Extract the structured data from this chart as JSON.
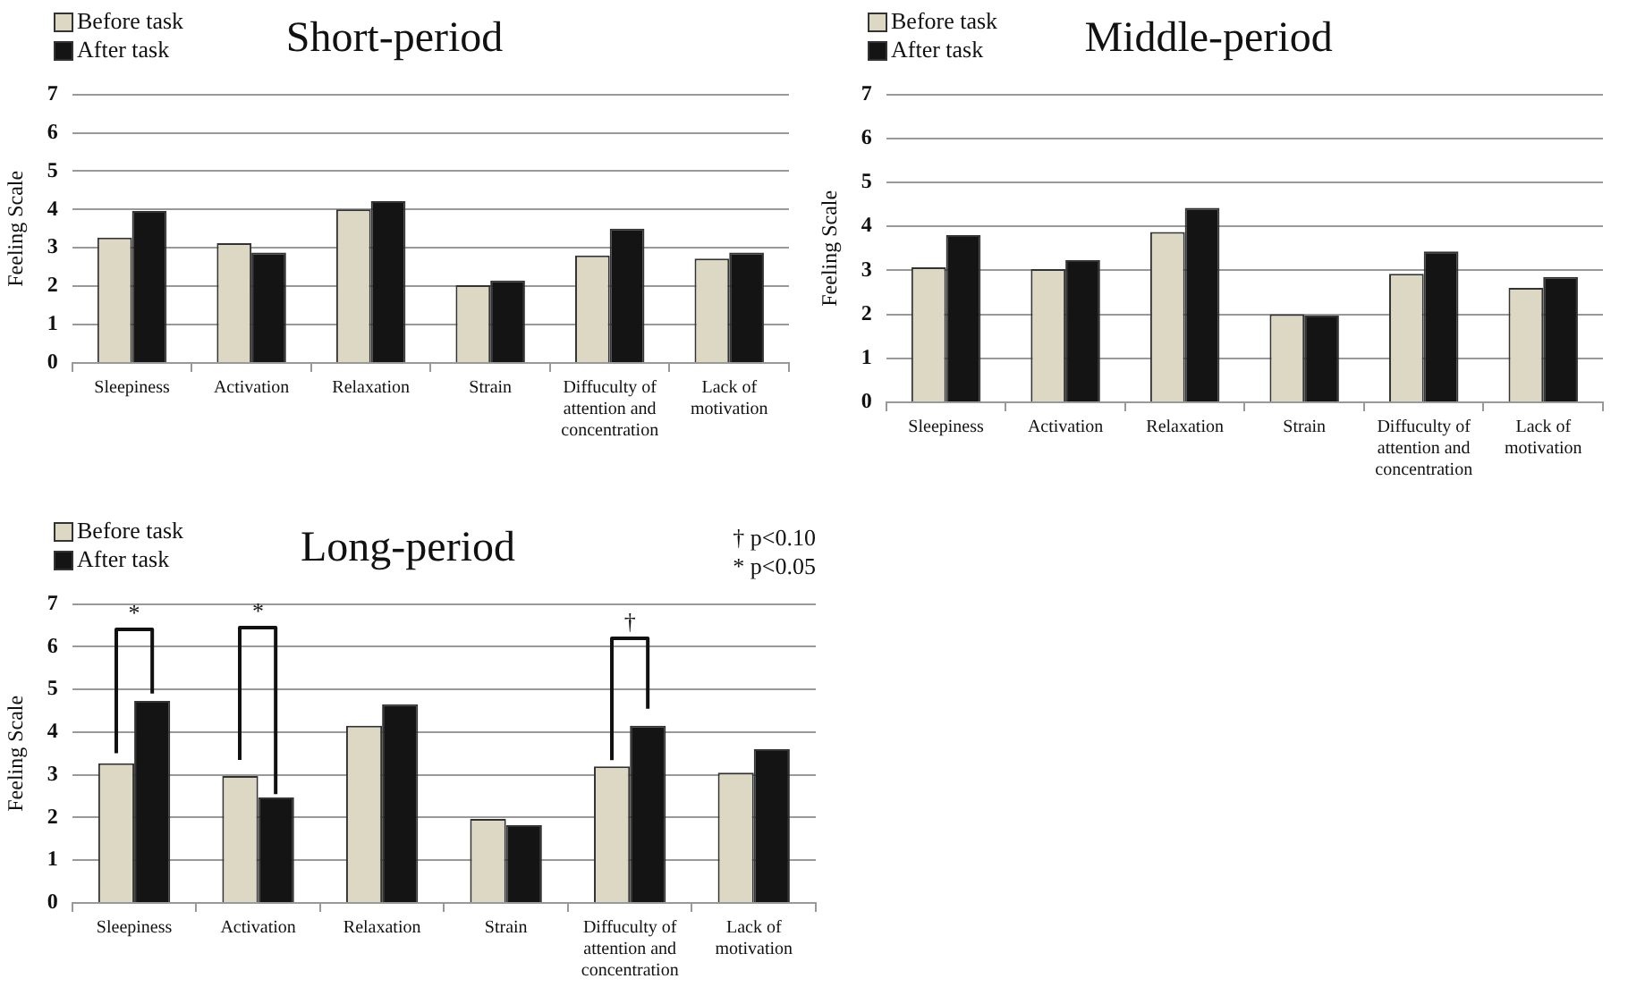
{
  "chart_data": [
    {
      "type": "bar",
      "title": "Short-period",
      "ylabel": "Feeling Scale",
      "categories": [
        "Sleepiness",
        "Activation",
        "Relaxation",
        "Strain",
        "Diffuculty of attention and concentration",
        "Lack of motivation"
      ],
      "series": [
        {
          "name": "Before task",
          "color": "#ddd8c4",
          "values": [
            3.27,
            3.12,
            4.0,
            2.03,
            2.8,
            2.72
          ]
        },
        {
          "name": "After task",
          "color": "#141414",
          "values": [
            3.96,
            2.88,
            4.22,
            2.15,
            3.5,
            2.88
          ]
        }
      ],
      "ylim": [
        0,
        7
      ],
      "yticks": [
        0,
        1,
        2,
        3,
        4,
        5,
        6,
        7
      ],
      "grid": "y",
      "legend": "top left"
    },
    {
      "type": "bar",
      "title": "Middle-period",
      "ylabel": "Feeling Scale",
      "categories": [
        "Sleepiness",
        "Activation",
        "Relaxation",
        "Strain",
        "Diffuculty of attention and concentration",
        "Lack of motivation"
      ],
      "series": [
        {
          "name": "Before task",
          "color": "#ddd8c4",
          "values": [
            3.07,
            3.03,
            3.87,
            2.0,
            2.92,
            2.6
          ]
        },
        {
          "name": "After task",
          "color": "#141414",
          "values": [
            3.8,
            3.23,
            4.42,
            1.97,
            3.43,
            2.85
          ]
        }
      ],
      "ylim": [
        0,
        7
      ],
      "yticks": [
        0,
        1,
        2,
        3,
        4,
        5,
        6,
        7
      ],
      "grid": "y",
      "legend": "top left"
    },
    {
      "type": "bar",
      "title": "Long-period",
      "ylabel": "Feeling Scale",
      "categories": [
        "Sleepiness",
        "Activation",
        "Relaxation",
        "Strain",
        "Diffuculty of attention and concentration",
        "Lack of motivation"
      ],
      "series": [
        {
          "name": "Before task",
          "color": "#ddd8c4",
          "values": [
            3.27,
            2.97,
            4.15,
            1.97,
            3.2,
            3.05
          ]
        },
        {
          "name": "After task",
          "color": "#141414",
          "values": [
            4.73,
            2.47,
            4.65,
            1.82,
            4.15,
            3.6
          ]
        }
      ],
      "ylim": [
        0,
        7
      ],
      "yticks": [
        0,
        1,
        2,
        3,
        4,
        5,
        6,
        7
      ],
      "grid": "y",
      "legend": "top left",
      "annotations": [
        "*",
        "*",
        "†",
        "† p<0.10",
        "* p<0.05"
      ]
    }
  ]
}
